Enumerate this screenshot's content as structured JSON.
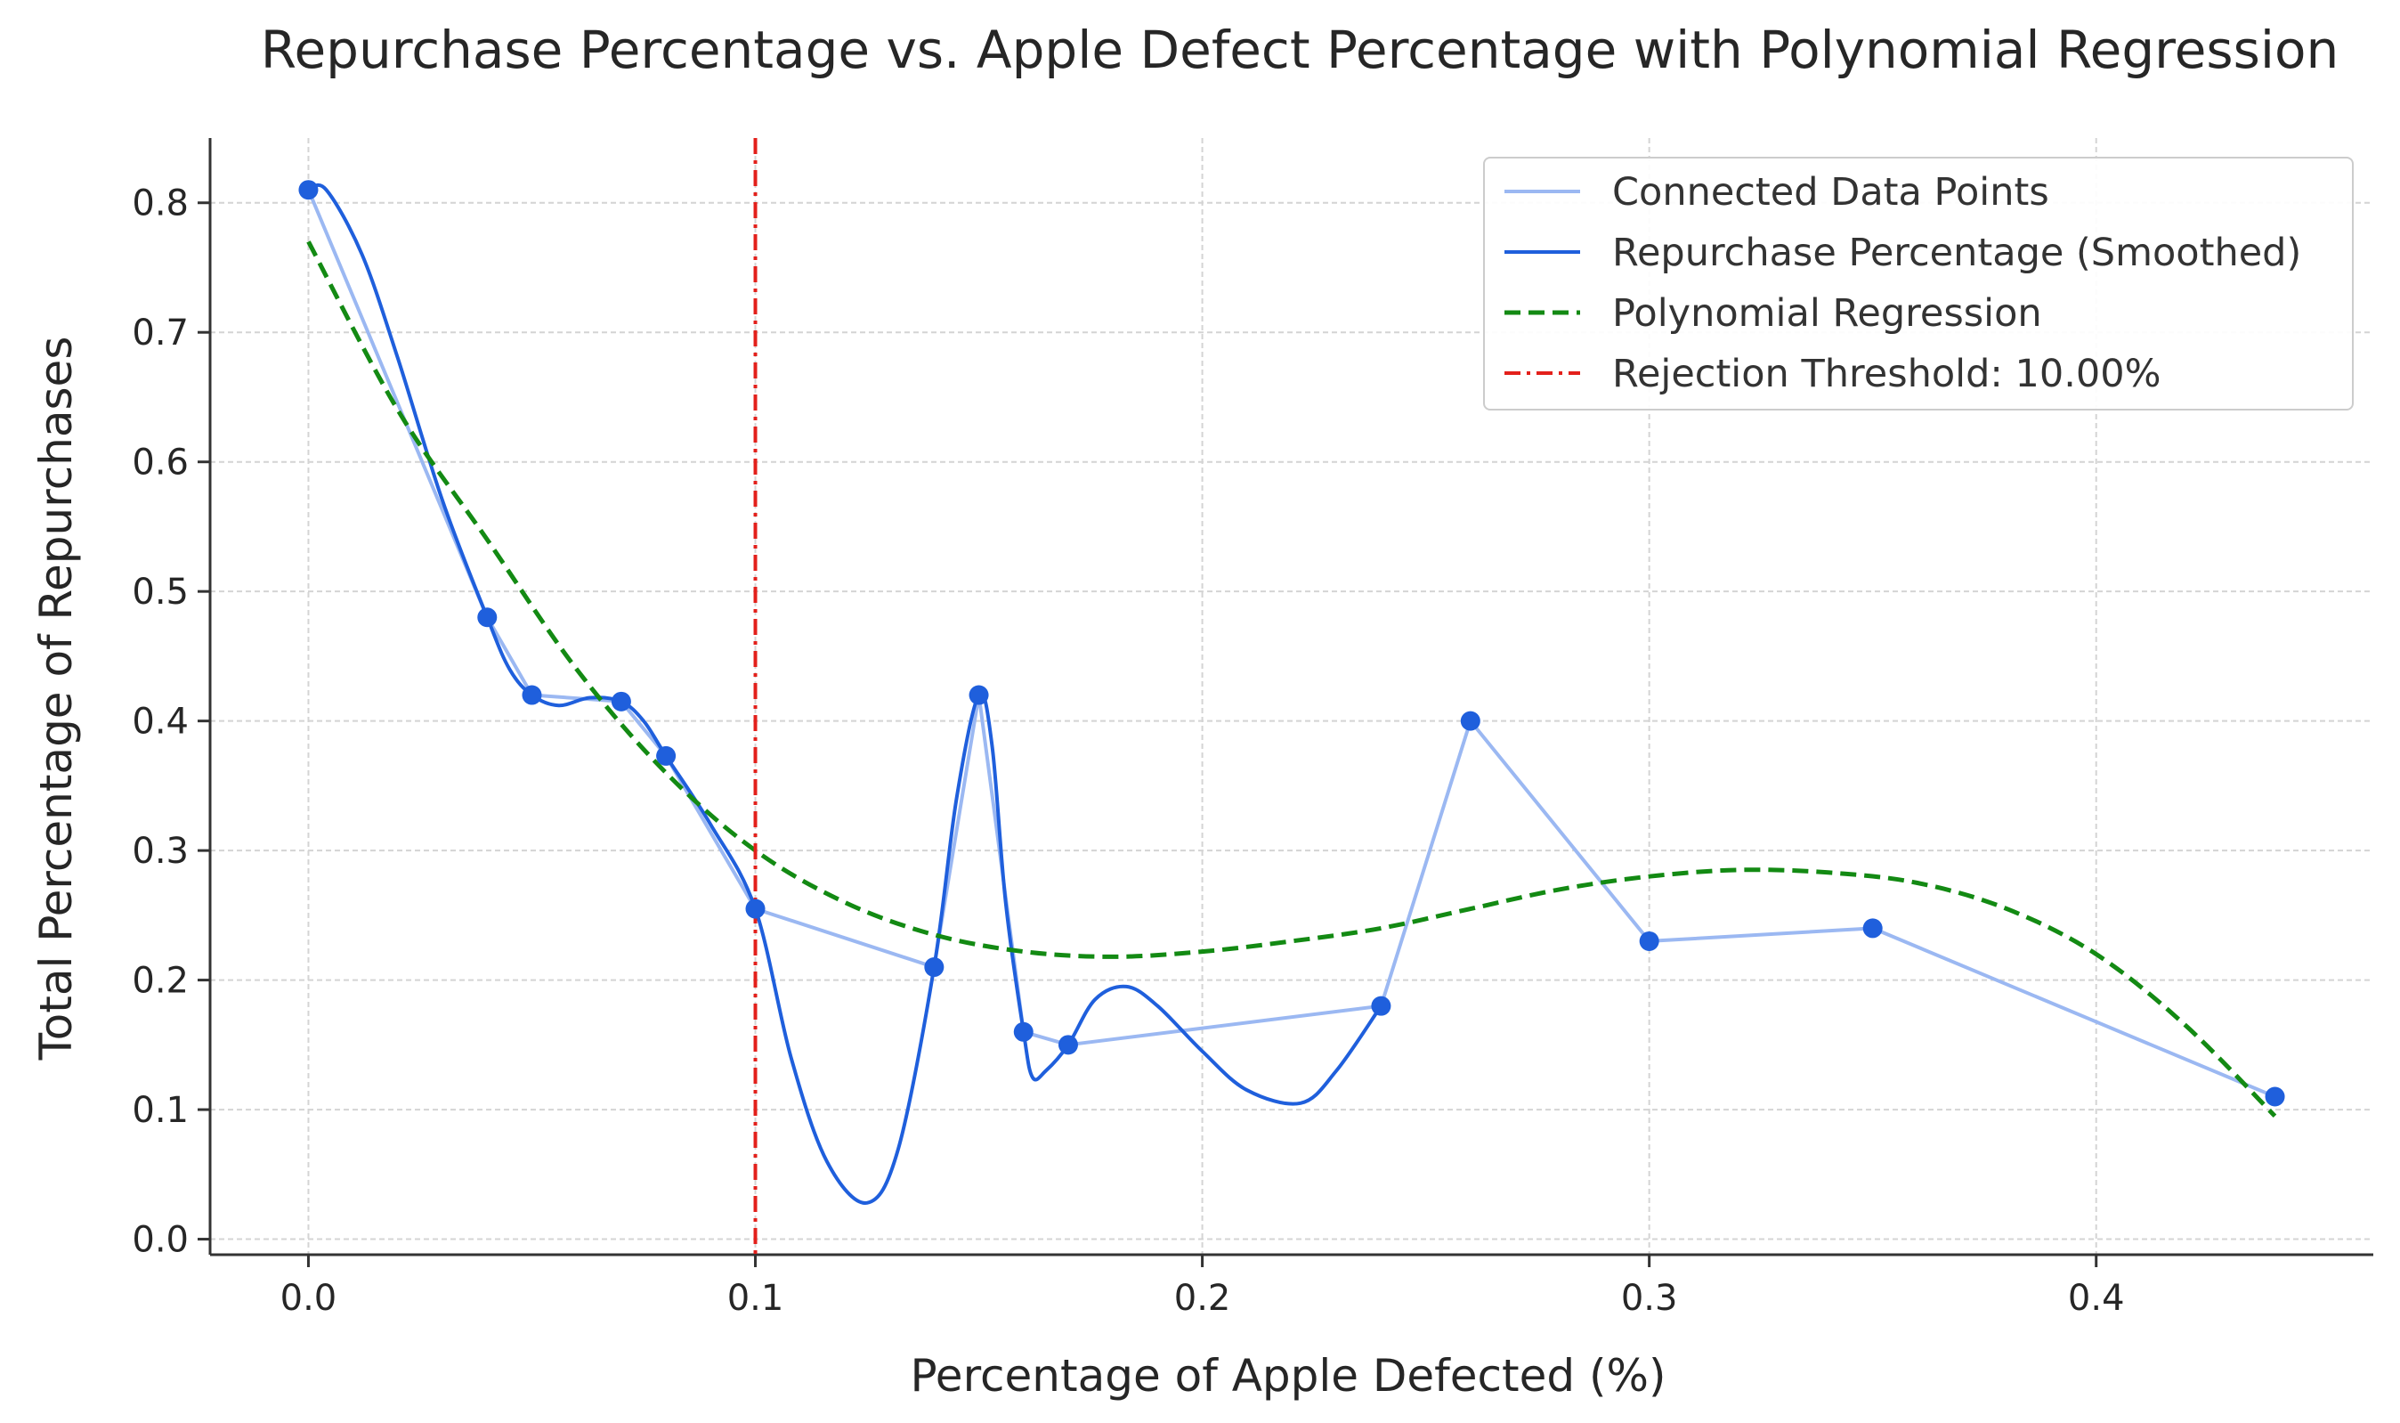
{
  "chart_data": {
    "type": "line",
    "title": "Repurchase Percentage vs. Apple Defect Percentage with Polynomial Regression",
    "xlabel": "Percentage of Apple Defected (%)",
    "ylabel": "Total Percentage of Repurchases",
    "xlim": [
      -0.022,
      0.462
    ],
    "ylim": [
      -0.012,
      0.85
    ],
    "x_ticks": [
      0.0,
      0.1,
      0.2,
      0.3,
      0.4
    ],
    "x_tick_labels": [
      "0.0",
      "0.1",
      "0.2",
      "0.3",
      "0.4"
    ],
    "y_ticks": [
      0.0,
      0.1,
      0.2,
      0.3,
      0.4,
      0.5,
      0.6,
      0.7,
      0.8
    ],
    "y_tick_labels": [
      "0.0",
      "0.1",
      "0.2",
      "0.3",
      "0.4",
      "0.5",
      "0.6",
      "0.7",
      "0.8"
    ],
    "grid": true,
    "legend_position": "top-right",
    "points": {
      "x": [
        0.0,
        0.04,
        0.05,
        0.07,
        0.08,
        0.1,
        0.14,
        0.15,
        0.16,
        0.17,
        0.24,
        0.26,
        0.3,
        0.35,
        0.44
      ],
      "y": [
        0.81,
        0.48,
        0.42,
        0.415,
        0.373,
        0.255,
        0.21,
        0.42,
        0.16,
        0.15,
        0.18,
        0.4,
        0.23,
        0.24,
        0.11
      ]
    },
    "series": [
      {
        "name": "Connected Data Points",
        "style": "solid",
        "color": "#9bb8f2",
        "x": [
          0.0,
          0.04,
          0.05,
          0.07,
          0.08,
          0.1,
          0.14,
          0.15,
          0.16,
          0.17,
          0.24,
          0.26,
          0.3,
          0.35,
          0.44
        ],
        "y": [
          0.81,
          0.48,
          0.42,
          0.415,
          0.373,
          0.255,
          0.21,
          0.42,
          0.16,
          0.15,
          0.18,
          0.4,
          0.23,
          0.24,
          0.11
        ]
      },
      {
        "name": "Repurchase Percentage (Smoothed)",
        "style": "solid",
        "color": "#1f5fdc",
        "x": [
          0.0,
          0.004,
          0.012,
          0.02,
          0.03,
          0.04,
          0.045,
          0.05,
          0.056,
          0.063,
          0.07,
          0.075,
          0.08,
          0.09,
          0.1,
          0.108,
          0.116,
          0.125,
          0.132,
          0.14,
          0.145,
          0.15,
          0.153,
          0.156,
          0.16,
          0.162,
          0.165,
          0.17,
          0.176,
          0.183,
          0.19,
          0.2,
          0.21,
          0.222,
          0.23,
          0.24
        ],
        "y": [
          0.81,
          0.81,
          0.76,
          0.68,
          0.57,
          0.48,
          0.44,
          0.42,
          0.412,
          0.418,
          0.415,
          0.4,
          0.373,
          0.32,
          0.255,
          0.14,
          0.06,
          0.028,
          0.07,
          0.21,
          0.34,
          0.42,
          0.38,
          0.26,
          0.16,
          0.125,
          0.13,
          0.15,
          0.185,
          0.195,
          0.18,
          0.145,
          0.115,
          0.105,
          0.13,
          0.18
        ]
      },
      {
        "name": "Polynomial Regression",
        "style": "dashed",
        "color": "#138a13",
        "x": [
          0.0,
          0.02,
          0.04,
          0.06,
          0.08,
          0.1,
          0.12,
          0.14,
          0.16,
          0.18,
          0.2,
          0.22,
          0.24,
          0.26,
          0.28,
          0.3,
          0.32,
          0.34,
          0.36,
          0.38,
          0.4,
          0.42,
          0.44
        ],
        "y": [
          0.77,
          0.64,
          0.54,
          0.44,
          0.36,
          0.3,
          0.26,
          0.235,
          0.222,
          0.218,
          0.222,
          0.23,
          0.24,
          0.255,
          0.27,
          0.28,
          0.285,
          0.283,
          0.275,
          0.255,
          0.22,
          0.165,
          0.095
        ]
      }
    ],
    "threshold": {
      "name": "Rejection Threshold: 10.00%",
      "x": 0.1,
      "style": "dashdot",
      "color": "#e3201b"
    },
    "point_color": "#1f5fdc"
  }
}
